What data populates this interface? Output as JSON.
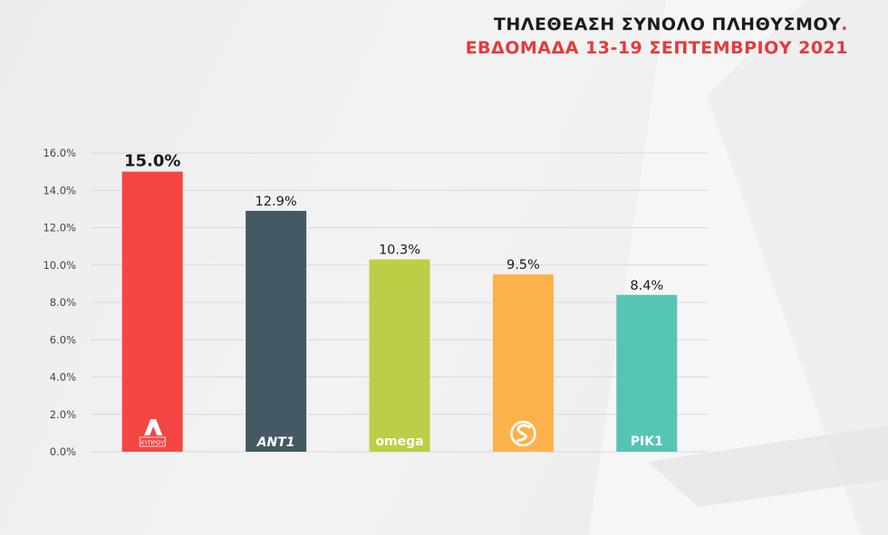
{
  "header": {
    "title_line1": "ΤΗΛΕΘΕΑΣΗ ΣΥΝΟΛΟ ΠΛΗΘΥΣΜΟΥ",
    "title_dot": ".",
    "title_line2": "ΕΒΔΟΜΑΔΑ 13-19 ΣΕΠΤΕΜΒΡΙΟΥ 2021"
  },
  "chart_data": {
    "type": "bar",
    "categories": [
      "ALPHA",
      "ANT1",
      "omega",
      "SIGMA",
      "RIK 1"
    ],
    "logo_texts": [
      "ΚΥΠΡΟΥ",
      "ΑΝΤ1",
      "omega",
      "",
      "ΡΙΚ1"
    ],
    "values": [
      15.0,
      12.9,
      10.3,
      9.5,
      8.4
    ],
    "data_labels": [
      "15.0%",
      "12.9%",
      "10.3%",
      "9.5%",
      "8.4%"
    ],
    "colors": [
      "#f44545",
      "#445964",
      "#bdcd45",
      "#fcb24b",
      "#56c4b3"
    ],
    "ylim": [
      0,
      16
    ],
    "yticks": [
      0,
      2,
      4,
      6,
      8,
      10,
      12,
      14,
      16
    ],
    "ytick_labels": [
      "0.0%",
      "2.0%",
      "4.0%",
      "6.0%",
      "8.0%",
      "10.0%",
      "12.0%",
      "14.0%",
      "16.0%"
    ],
    "grid": true,
    "xlabel": "",
    "ylabel": "",
    "legend": "none"
  }
}
